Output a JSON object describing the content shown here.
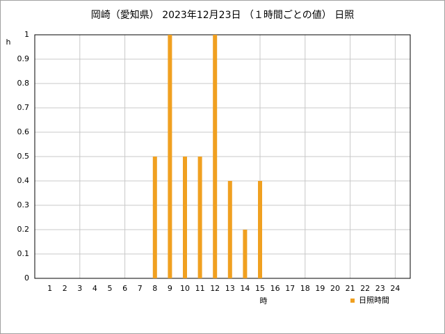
{
  "chart_data": {
    "type": "bar",
    "title": "岡崎（愛知県） 2023年12月23日 （１時間ごとの値） 日照",
    "y_label": "h",
    "x_label": "時",
    "x": [
      1,
      2,
      3,
      4,
      5,
      6,
      7,
      8,
      9,
      10,
      11,
      12,
      13,
      14,
      15,
      16,
      17,
      18,
      19,
      20,
      21,
      22,
      23,
      24
    ],
    "series": [
      {
        "name": "日照時間",
        "color": "#f0a020",
        "values": [
          0,
          0,
          0,
          0,
          0,
          0,
          0,
          0.5,
          1,
          0.5,
          0.5,
          1,
          0.4,
          0.2,
          0.4,
          0,
          0,
          0,
          0,
          0,
          0,
          0,
          0,
          0
        ]
      }
    ],
    "xlim": [
      0,
      25
    ],
    "xticks": [
      1,
      2,
      3,
      4,
      5,
      6,
      7,
      8,
      9,
      10,
      11,
      12,
      13,
      14,
      15,
      16,
      17,
      18,
      19,
      20,
      21,
      22,
      23,
      24
    ],
    "ylim": [
      0,
      1
    ],
    "yticks": [
      0,
      0.1,
      0.2,
      0.3,
      0.4,
      0.5,
      0.6,
      0.7,
      0.8,
      0.9,
      1
    ],
    "grid": true,
    "legend": "bottom-right"
  }
}
